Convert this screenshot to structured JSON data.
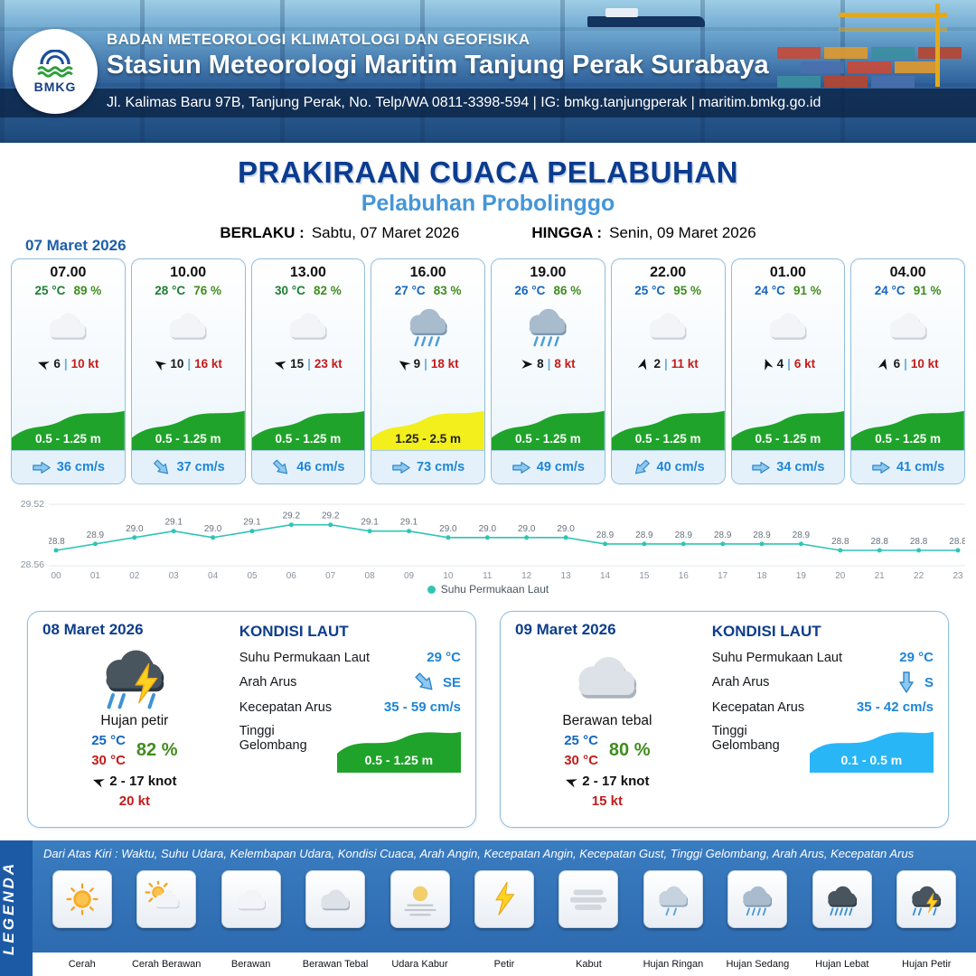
{
  "ui": {
    "wind_sep": "|"
  },
  "header": {
    "logo_text": "BMKG",
    "agency": "BADAN METEOROLOGI KLIMATOLOGI DAN GEOFISIKA",
    "station": "Stasiun Meteorologi Maritim Tanjung Perak Surabaya",
    "address": "Jl. Kalimas Baru 97B, Tanjung Perak, No. Telp/WA 0811-3398-594 | IG: bmkg.tanjungperak | maritim.bmkg.go.id"
  },
  "title": {
    "main": "PRAKIRAAN CUACA PELABUHAN",
    "subtitle": "Pelabuhan Probolinggo",
    "berlaku_label": "BERLAKU :",
    "berlaku_value": "Sabtu, 07 Maret 2026",
    "hingga_label": "HINGGA :",
    "hingga_value": "Senin, 09 Maret 2026"
  },
  "forecast": {
    "date": "07 Maret 2026",
    "cards": [
      {
        "time": "07.00",
        "temp": "25 °C",
        "temp_color": "#1e7e34",
        "humidity": "89 %",
        "icon": "berawan",
        "wind_dir_deg": 200,
        "wind_speed": "6",
        "gust": "10 kt",
        "wave": "0.5 - 1.25 m",
        "wave_color": "#1fa32a",
        "wave_text_color": "#ffffff",
        "current_dir_deg": 0,
        "current": "36 cm/s"
      },
      {
        "time": "10.00",
        "temp": "28 °C",
        "temp_color": "#1e7e34",
        "humidity": "76 %",
        "icon": "berawan",
        "wind_dir_deg": 215,
        "wind_speed": "10",
        "gust": "16 kt",
        "wave": "0.5 - 1.25 m",
        "wave_color": "#1fa32a",
        "wave_text_color": "#ffffff",
        "current_dir_deg": 45,
        "current": "37 cm/s"
      },
      {
        "time": "13.00",
        "temp": "30 °C",
        "temp_color": "#1e7e34",
        "humidity": "82 %",
        "icon": "berawan",
        "wind_dir_deg": 195,
        "wind_speed": "15",
        "gust": "23 kt",
        "wave": "0.5 - 1.25 m",
        "wave_color": "#1fa32a",
        "wave_text_color": "#ffffff",
        "current_dir_deg": 45,
        "current": "46 cm/s"
      },
      {
        "time": "16.00",
        "temp": "27 °C",
        "temp_color": "#1565c0",
        "humidity": "83 %",
        "icon": "hujan-sedang",
        "wind_dir_deg": 215,
        "wind_speed": "9",
        "gust": "18 kt",
        "wave": "1.25 - 2.5 m",
        "wave_color": "#f2ef1c",
        "wave_text_color": "#222222",
        "current_dir_deg": 0,
        "current": "73 cm/s"
      },
      {
        "time": "19.00",
        "temp": "26 °C",
        "temp_color": "#1565c0",
        "humidity": "86 %",
        "icon": "hujan-sedang",
        "wind_dir_deg": 0,
        "wind_speed": "8",
        "gust": "8 kt",
        "wave": "0.5 - 1.25 m",
        "wave_color": "#1fa32a",
        "wave_text_color": "#ffffff",
        "current_dir_deg": 0,
        "current": "49 cm/s"
      },
      {
        "time": "22.00",
        "temp": "25 °C",
        "temp_color": "#1565c0",
        "humidity": "95 %",
        "icon": "berawan",
        "wind_dir_deg": 285,
        "wind_speed": "2",
        "gust": "11 kt",
        "wave": "0.5 - 1.25 m",
        "wave_color": "#1fa32a",
        "wave_text_color": "#ffffff",
        "current_dir_deg": 135,
        "current": "40 cm/s"
      },
      {
        "time": "01.00",
        "temp": "24 °C",
        "temp_color": "#1565c0",
        "humidity": "91 %",
        "icon": "berawan",
        "wind_dir_deg": 250,
        "wind_speed": "4",
        "gust": "6 kt",
        "wave": "0.5 - 1.25 m",
        "wave_color": "#1fa32a",
        "wave_text_color": "#ffffff",
        "current_dir_deg": 0,
        "current": "34 cm/s"
      },
      {
        "time": "04.00",
        "temp": "24 °C",
        "temp_color": "#1565c0",
        "humidity": "91 %",
        "icon": "berawan",
        "wind_dir_deg": 285,
        "wind_speed": "6",
        "gust": "10 kt",
        "wave": "0.5 - 1.25 m",
        "wave_color": "#1fa32a",
        "wave_text_color": "#ffffff",
        "current_dir_deg": 0,
        "current": "41 cm/s"
      }
    ]
  },
  "chart_data": {
    "type": "line",
    "title": "",
    "legend_label": "Suhu Permukaan Laut",
    "x": [
      "00",
      "01",
      "02",
      "03",
      "04",
      "05",
      "06",
      "07",
      "08",
      "09",
      "10",
      "11",
      "12",
      "13",
      "14",
      "15",
      "16",
      "17",
      "18",
      "19",
      "20",
      "21",
      "22",
      "23"
    ],
    "values": [
      28.8,
      28.9,
      29.0,
      29.1,
      29.0,
      29.1,
      29.2,
      29.2,
      29.1,
      29.1,
      29.0,
      29.0,
      29.0,
      29.0,
      28.9,
      28.9,
      28.9,
      28.9,
      28.9,
      28.9,
      28.8,
      28.8,
      28.8,
      28.8
    ],
    "ylim": [
      28.56,
      29.52
    ],
    "ytick_top": "29.52",
    "ytick_bottom": "28.56",
    "xlabel": "",
    "ylabel": "",
    "grid": true,
    "legend_position": "bottom",
    "line_color": "#2fc5b5"
  },
  "daily_cards": [
    {
      "date": "08 Maret 2026",
      "icon": "hujan-petir",
      "condition": "Hujan petir",
      "temp_min": "25 °C",
      "temp_max": "30 °C",
      "humidity": "82 %",
      "wind_dir_deg": 200,
      "wind_range": "2 - 17 knot",
      "gust": "20 kt",
      "sea": {
        "heading": "KONDISI LAUT",
        "sst_label": "Suhu Permukaan Laut",
        "sst": "29 °C",
        "current_dir_label": "Arah Arus",
        "current_dir": "SE",
        "current_dir_deg": 45,
        "current_speed_label": "Kecepatan Arus",
        "current_speed": "35 - 59 cm/s",
        "wave_label": "Tinggi Gelombang",
        "wave": "0.5 - 1.25 m",
        "wave_color": "#1fa32a"
      }
    },
    {
      "date": "09 Maret 2026",
      "icon": "berawan-tebal",
      "condition": "Berawan tebal",
      "temp_min": "25 °C",
      "temp_max": "30 °C",
      "humidity": "80 %",
      "wind_dir_deg": 200,
      "wind_range": "2 - 17 knot",
      "gust": "15 kt",
      "sea": {
        "heading": "KONDISI LAUT",
        "sst_label": "Suhu Permukaan Laut",
        "sst": "29 °C",
        "current_dir_label": "Arah Arus",
        "current_dir": "S",
        "current_dir_deg": 90,
        "current_speed_label": "Kecepatan Arus",
        "current_speed": "35 - 42 cm/s",
        "wave_label": "Tinggi Gelombang",
        "wave": "0.1 - 0.5 m",
        "wave_color": "#29b6f6"
      }
    }
  ],
  "legend": {
    "title": "LEGENDA",
    "description": "Dari Atas Kiri : Waktu, Suhu Udara, Kelembapan Udara, Kondisi Cuaca, Arah Angin, Kecepatan Angin, Kecepatan Gust, Tinggi Gelombang, Arah Arus, Kecepatan Arus",
    "items": [
      {
        "label": "Cerah",
        "icon": "cerah"
      },
      {
        "label": "Cerah Berawan",
        "icon": "cerah-berawan"
      },
      {
        "label": "Berawan",
        "icon": "berawan"
      },
      {
        "label": "Berawan Tebal",
        "icon": "berawan-tebal"
      },
      {
        "label": "Udara Kabur",
        "icon": "udara-kabur"
      },
      {
        "label": "Petir",
        "icon": "petir"
      },
      {
        "label": "Kabut",
        "icon": "kabut"
      },
      {
        "label": "Hujan Ringan",
        "icon": "hujan-ringan"
      },
      {
        "label": "Hujan Sedang",
        "icon": "hujan-sedang"
      },
      {
        "label": "Hujan Lebat",
        "icon": "hujan-lebat"
      },
      {
        "label": "Hujan Petir",
        "icon": "hujan-petir"
      }
    ]
  }
}
